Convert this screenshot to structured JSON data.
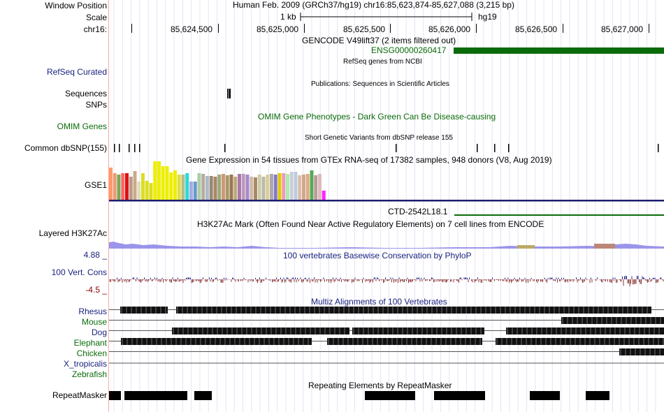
{
  "header": {
    "window_position_label": "Window Position",
    "scale_label": "Scale",
    "chrom_label": "chr16:",
    "position_title": "Human Feb. 2009 (GRCh37/hg19)   chr16:85,623,874-85,627,088 (3,215 bp)",
    "scale_value": "1 kb",
    "assembly": "hg19",
    "ticks": [
      "85,624,500",
      "85,625,000",
      "85,625,500",
      "85,626,000",
      "85,626,500",
      "85,627,000"
    ]
  },
  "tracks": {
    "gencode": {
      "title": "GENCODE V49lift37 (2 items filtered out)",
      "gene": "ENSG00000260417"
    },
    "refseq": {
      "label": "RefSeq Curated",
      "subtitle": "RefSeq genes from NCBI"
    },
    "publications": {
      "label_sequences": "Sequences",
      "label_snps": "SNPs",
      "title": "Publications: Sequences in Scientific Articles"
    },
    "omim": {
      "label": "OMIM Genes",
      "title": "OMIM Gene Phenotypes - Dark Green Can Be Disease-causing"
    },
    "dbsnp": {
      "label": "Common dbSNP(155)",
      "title": "Short Genetic Variants from dbSNP release 155"
    },
    "gtex": {
      "label": "GSE1",
      "title": "Gene Expression in 54 tissues from GTEx RNA-seq of 17382 samples, 948 donors (V8, Aug 2019)",
      "values": [
        46,
        38,
        36,
        38,
        38,
        33,
        41,
        26,
        38,
        27,
        24,
        55,
        55,
        48,
        48,
        39,
        42,
        36,
        36,
        38,
        26,
        26,
        38,
        37,
        34,
        34,
        33,
        36,
        37,
        35,
        36,
        33,
        37,
        37,
        36,
        33,
        32,
        36,
        33,
        36,
        37,
        36,
        38,
        38,
        37,
        40,
        40,
        35,
        36,
        37,
        42,
        35,
        37,
        13
      ],
      "colors": [
        "#ff9966",
        "#ee9977",
        "#77aa55",
        "#ff6666",
        "#dd1111",
        "#bb9988",
        "#ccaa88",
        "#ddddbb",
        "#dddd22",
        "#dddd22",
        "#dddd22",
        "#eeee00",
        "#eeee00",
        "#eeee00",
        "#eeee00",
        "#eeee00",
        "#eeee00",
        "#dddd44",
        "#bbbb88",
        "#22dddd",
        "#aaaadd",
        "#6699cc",
        "#aaccaa",
        "#bbaa99",
        "#aabbcc",
        "#998877",
        "#aa8866",
        "#99aa77",
        "#cc9977",
        "#aa9966",
        "#997755",
        "#bbaa77",
        "#aa77aa",
        "#bb99bb",
        "#aa88cc",
        "#ccbbaa",
        "#aa8866",
        "#ccccaa",
        "#bbbbaa",
        "#ddcc99",
        "#aaaaaa",
        "#8877cc",
        "#ddcc00",
        "#ee99bb",
        "#aaeeaa",
        "#ccccdd",
        "#bbccdd",
        "#ddbbaa",
        "#ccaa88",
        "#ddaa88",
        "#55aa55",
        "#bb9999",
        "#ddbbbb",
        "#ff22ff"
      ]
    },
    "ctd": {
      "gene": "CTD-2542L18.1"
    },
    "h3k27ac": {
      "label": "Layered H3K27Ac",
      "title": "H3K27Ac Mark (Often Found Near Active Regulatory Elements) on 7 cell lines from ENCODE"
    },
    "phylop": {
      "label": "100 Vert. Cons",
      "max": "4.88 _",
      "min": "-4.5 _",
      "title": "100 vertebrates Basewise Conservation by PhyloP"
    },
    "multiz": {
      "title": "Multiz Alignments of 100 Vertebrates",
      "species": [
        "Rhesus",
        "Mouse",
        "Dog",
        "Elephant",
        "Chicken",
        "X_tropicalis",
        "Zebrafish"
      ]
    },
    "repeatmasker": {
      "label": "RepeatMasker",
      "title": "Repeating Elements by RepeatMasker"
    }
  },
  "colors": {
    "label_blue": "#1a237e",
    "gene_green": "#0a6b0a",
    "separator_navy": "#1c1c6e",
    "phylop_neg": "#8b3333",
    "h3k27ac_fill": "#8a82e6"
  }
}
